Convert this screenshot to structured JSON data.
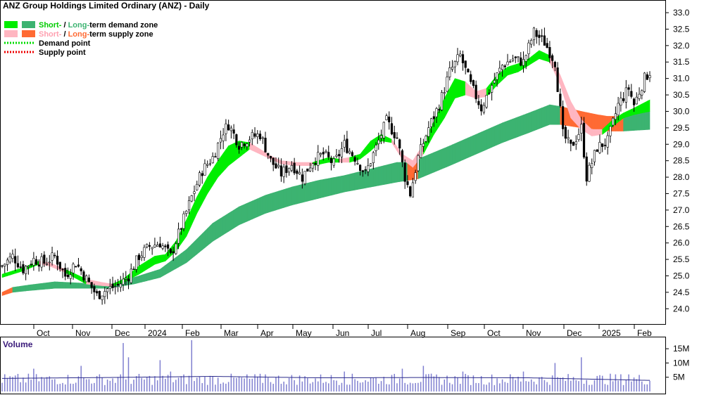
{
  "chart_data": {
    "type": "candlestick",
    "title": "ANZ Group Holdings Limited Ordinary (ANZ) - Daily",
    "y_axis": {
      "ticks": [
        "33.0",
        "32.5",
        "32.0",
        "31.5",
        "31.0",
        "30.5",
        "30.0",
        "29.5",
        "29.0",
        "28.5",
        "28.0",
        "27.5",
        "27.0",
        "26.5",
        "26.0",
        "25.5",
        "25.0",
        "24.5",
        "24.0"
      ],
      "ylim": [
        23.6,
        33.3
      ]
    },
    "x_axis": {
      "ticks": [
        "Oct",
        "Nov",
        "Dec",
        "2024",
        "Feb",
        "Mar",
        "Apr",
        "May",
        "Jun",
        "Jul",
        "Aug",
        "Sep",
        "Oct",
        "Nov",
        "Dec",
        "2025",
        "Feb"
      ]
    },
    "legend": {
      "zones_a": {
        "short": "Short-",
        "sep": " / ",
        "long": "Long-",
        "rest": "term demand zone"
      },
      "zones_b": {
        "short": "Short-",
        "sep": " / ",
        "long": "Long-",
        "rest": "term supply zone"
      },
      "demand_point": "Demand point",
      "supply_point": "Supply point"
    },
    "colors": {
      "short_demand": "#00ee00",
      "long_demand": "#3cb371",
      "short_supply": "#ffb6c1",
      "long_supply": "#ff6a33",
      "candle": "#000000",
      "volume": "#7f7fd0"
    },
    "price_anchors": [
      [
        0,
        25.3
      ],
      [
        4,
        25.6
      ],
      [
        8,
        25.2
      ],
      [
        12,
        25.5
      ],
      [
        16,
        25.4
      ],
      [
        20,
        25.6
      ],
      [
        24,
        25.0
      ],
      [
        28,
        25.4
      ],
      [
        32,
        24.9
      ],
      [
        36,
        24.4
      ],
      [
        40,
        24.6
      ],
      [
        44,
        24.7
      ],
      [
        48,
        25.0
      ],
      [
        52,
        25.6
      ],
      [
        56,
        25.9
      ],
      [
        60,
        26.0
      ],
      [
        64,
        25.6
      ],
      [
        68,
        26.5
      ],
      [
        72,
        27.4
      ],
      [
        76,
        28.2
      ],
      [
        80,
        28.6
      ],
      [
        84,
        29.4
      ],
      [
        86,
        29.6
      ],
      [
        90,
        29.0
      ],
      [
        94,
        29.2
      ],
      [
        98,
        29.3
      ],
      [
        102,
        28.5
      ],
      [
        106,
        28.1
      ],
      [
        110,
        28.4
      ],
      [
        114,
        28.0
      ],
      [
        118,
        28.5
      ],
      [
        122,
        28.7
      ],
      [
        126,
        28.4
      ],
      [
        130,
        29.0
      ],
      [
        134,
        28.6
      ],
      [
        138,
        28.1
      ],
      [
        142,
        28.9
      ],
      [
        146,
        29.7
      ],
      [
        150,
        29.2
      ],
      [
        153,
        28.0
      ],
      [
        155,
        27.5
      ],
      [
        158,
        28.6
      ],
      [
        162,
        29.5
      ],
      [
        166,
        30.2
      ],
      [
        170,
        31.2
      ],
      [
        174,
        31.7
      ],
      [
        178,
        30.8
      ],
      [
        182,
        30.1
      ],
      [
        186,
        30.8
      ],
      [
        190,
        31.4
      ],
      [
        194,
        31.6
      ],
      [
        198,
        31.5
      ],
      [
        202,
        32.4
      ],
      [
        206,
        32.1
      ],
      [
        210,
        31.5
      ],
      [
        213,
        29.3
      ],
      [
        216,
        28.9
      ],
      [
        220,
        29.5
      ],
      [
        222,
        28.0
      ],
      [
        226,
        28.9
      ],
      [
        230,
        29.1
      ],
      [
        234,
        30.2
      ],
      [
        238,
        30.7
      ],
      [
        240,
        30.2
      ],
      [
        244,
        31.0
      ],
      [
        246,
        31.2
      ]
    ],
    "short_zone_anchors": [
      [
        0,
        25.05,
        24.95,
        1
      ],
      [
        8,
        25.25,
        25.15,
        1
      ],
      [
        14,
        25.45,
        25.35,
        0
      ],
      [
        18,
        25.4,
        25.3,
        0
      ],
      [
        24,
        25.2,
        25.1,
        1
      ],
      [
        32,
        24.9,
        24.75,
        0
      ],
      [
        38,
        24.8,
        24.7,
        0
      ],
      [
        42,
        24.75,
        24.68,
        1
      ],
      [
        46,
        24.9,
        24.8,
        1
      ],
      [
        52,
        25.3,
        25.05,
        1
      ],
      [
        58,
        25.6,
        25.35,
        1
      ],
      [
        62,
        25.65,
        25.45,
        1
      ],
      [
        66,
        26.05,
        25.75,
        1
      ],
      [
        70,
        26.7,
        26.2,
        1
      ],
      [
        74,
        27.4,
        26.9,
        1
      ],
      [
        78,
        28.0,
        27.5,
        1
      ],
      [
        82,
        28.5,
        28.0,
        1
      ],
      [
        86,
        28.95,
        28.35,
        1
      ],
      [
        90,
        29.1,
        28.6,
        1
      ],
      [
        94,
        29.05,
        28.85,
        0
      ],
      [
        98,
        28.85,
        28.7,
        0
      ],
      [
        102,
        28.65,
        28.55,
        0
      ],
      [
        106,
        28.5,
        28.4,
        0
      ],
      [
        112,
        28.45,
        28.35,
        0
      ],
      [
        118,
        28.45,
        28.35,
        1
      ],
      [
        124,
        28.6,
        28.45,
        1
      ],
      [
        128,
        28.55,
        28.45,
        0
      ],
      [
        132,
        28.6,
        28.45,
        1
      ],
      [
        136,
        28.7,
        28.55,
        1
      ],
      [
        140,
        29.1,
        28.8,
        1
      ],
      [
        144,
        29.3,
        29.1,
        1
      ],
      [
        148,
        29.15,
        29.05,
        0
      ],
      [
        152,
        28.7,
        28.55,
        0
      ],
      [
        156,
        28.5,
        28.3,
        0
      ],
      [
        160,
        29.0,
        28.7,
        1
      ],
      [
        164,
        29.7,
        29.3,
        1
      ],
      [
        168,
        30.4,
        29.8,
        1
      ],
      [
        172,
        31.0,
        30.4,
        1
      ],
      [
        176,
        30.9,
        30.5,
        0
      ],
      [
        180,
        30.6,
        30.4,
        0
      ],
      [
        184,
        30.7,
        30.45,
        1
      ],
      [
        188,
        31.1,
        30.8,
        1
      ],
      [
        192,
        31.35,
        31.1,
        1
      ],
      [
        196,
        31.45,
        31.2,
        1
      ],
      [
        200,
        31.6,
        31.4,
        1
      ],
      [
        204,
        31.85,
        31.6,
        1
      ],
      [
        208,
        31.7,
        31.5,
        0
      ],
      [
        212,
        31.1,
        30.8,
        0
      ],
      [
        216,
        30.3,
        29.8,
        0
      ],
      [
        220,
        29.75,
        29.45,
        0
      ],
      [
        224,
        29.45,
        29.25,
        0
      ],
      [
        228,
        29.45,
        29.3,
        1
      ],
      [
        232,
        29.75,
        29.55,
        1
      ],
      [
        236,
        29.95,
        29.8,
        1
      ],
      [
        240,
        30.1,
        29.9,
        1
      ],
      [
        246,
        30.35,
        30.0,
        1
      ]
    ],
    "long_zone_anchors": [
      [
        0,
        24.5,
        24.4,
        0
      ],
      [
        4,
        24.65,
        24.5,
        1
      ],
      [
        10,
        24.72,
        24.55,
        1
      ],
      [
        20,
        24.82,
        24.62,
        1
      ],
      [
        30,
        24.78,
        24.62,
        1
      ],
      [
        40,
        24.72,
        24.62,
        1
      ],
      [
        50,
        24.95,
        24.75,
        1
      ],
      [
        60,
        25.2,
        24.95,
        1
      ],
      [
        70,
        25.8,
        25.4,
        1
      ],
      [
        80,
        26.6,
        26.05,
        1
      ],
      [
        90,
        27.1,
        26.55,
        1
      ],
      [
        100,
        27.45,
        26.9,
        1
      ],
      [
        110,
        27.7,
        27.15,
        1
      ],
      [
        120,
        27.9,
        27.35,
        1
      ],
      [
        130,
        28.05,
        27.55,
        1
      ],
      [
        140,
        28.25,
        27.7,
        1
      ],
      [
        150,
        28.45,
        27.85,
        1
      ],
      [
        154,
        28.45,
        27.9,
        0
      ],
      [
        158,
        28.55,
        27.95,
        1
      ],
      [
        170,
        28.95,
        28.35,
        1
      ],
      [
        180,
        29.3,
        28.7,
        1
      ],
      [
        190,
        29.65,
        29.05,
        1
      ],
      [
        200,
        29.95,
        29.35,
        1
      ],
      [
        208,
        30.2,
        29.6,
        1
      ],
      [
        212,
        30.15,
        29.6,
        0
      ],
      [
        220,
        30.0,
        29.5,
        0
      ],
      [
        226,
        29.9,
        29.45,
        0
      ],
      [
        230,
        29.85,
        29.4,
        0
      ],
      [
        236,
        29.85,
        29.4,
        1
      ],
      [
        246,
        30.0,
        29.45,
        1
      ]
    ],
    "volume": {
      "ticks": [
        "15M",
        "10M",
        "5M"
      ],
      "label": "Volume",
      "ylim": [
        0,
        18
      ],
      "baseline_m": 4.5,
      "spikes": [
        [
          12,
          8
        ],
        [
          30,
          9
        ],
        [
          46,
          17
        ],
        [
          48,
          12
        ],
        [
          60,
          11
        ],
        [
          64,
          7
        ],
        [
          72,
          18
        ],
        [
          100,
          6
        ],
        [
          130,
          7
        ],
        [
          152,
          8
        ],
        [
          160,
          9
        ],
        [
          175,
          7
        ],
        [
          198,
          7
        ],
        [
          210,
          10
        ],
        [
          220,
          12
        ],
        [
          238,
          6
        ]
      ],
      "avg_line": [
        [
          0,
          4.6
        ],
        [
          40,
          4.9
        ],
        [
          80,
          5.3
        ],
        [
          120,
          4.8
        ],
        [
          160,
          4.9
        ],
        [
          200,
          4.8
        ],
        [
          246,
          3.9
        ]
      ]
    },
    "grid": false
  }
}
